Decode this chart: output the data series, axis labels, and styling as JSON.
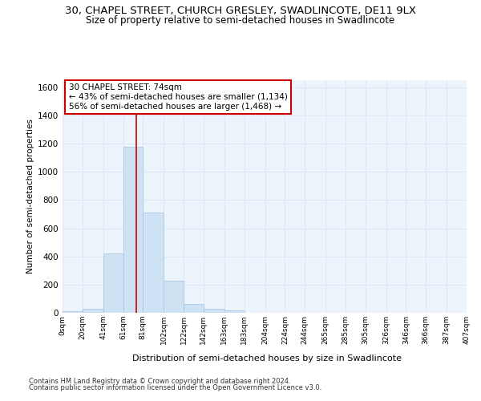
{
  "title_line1": "30, CHAPEL STREET, CHURCH GRESLEY, SWADLINCOTE, DE11 9LX",
  "title_line2": "Size of property relative to semi-detached houses in Swadlincote",
  "xlabel": "Distribution of semi-detached houses by size in Swadlincote",
  "ylabel": "Number of semi-detached properties",
  "footer_line1": "Contains HM Land Registry data © Crown copyright and database right 2024.",
  "footer_line2": "Contains public sector information licensed under the Open Government Licence v3.0.",
  "bar_edges": [
    0,
    20,
    41,
    61,
    81,
    102,
    122,
    142,
    163,
    183,
    204,
    224,
    244,
    265,
    285,
    305,
    326,
    346,
    366,
    387,
    407
  ],
  "bar_heights": [
    10,
    30,
    420,
    1180,
    710,
    230,
    65,
    30,
    15,
    0,
    0,
    0,
    0,
    0,
    0,
    0,
    0,
    0,
    0,
    0
  ],
  "bar_color": "#cfe2f3",
  "bar_edge_color": "#a8c8e8",
  "property_size": 74,
  "property_line_color": "#cc0000",
  "annotation_text_line1": "30 CHAPEL STREET: 74sqm",
  "annotation_text_line2": "← 43% of semi-detached houses are smaller (1,134)",
  "annotation_text_line3": "56% of semi-detached houses are larger (1,468) →",
  "annotation_box_color": "#ffffff",
  "annotation_box_edge_color": "#cc0000",
  "ylim": [
    0,
    1650
  ],
  "xlim": [
    0,
    407
  ],
  "yticks": [
    0,
    200,
    400,
    600,
    800,
    1000,
    1200,
    1400,
    1600
  ],
  "xtick_labels": [
    "0sqm",
    "20sqm",
    "41sqm",
    "61sqm",
    "81sqm",
    "102sqm",
    "122sqm",
    "142sqm",
    "163sqm",
    "183sqm",
    "204sqm",
    "224sqm",
    "244sqm",
    "265sqm",
    "285sqm",
    "305sqm",
    "326sqm",
    "346sqm",
    "366sqm",
    "387sqm",
    "407sqm"
  ],
  "grid_color": "#dce8f5",
  "background_color": "#eef4fb",
  "title_fontsize": 9.5,
  "subtitle_fontsize": 8.5,
  "annotation_fontsize": 7.5,
  "footer_fontsize": 6.0
}
